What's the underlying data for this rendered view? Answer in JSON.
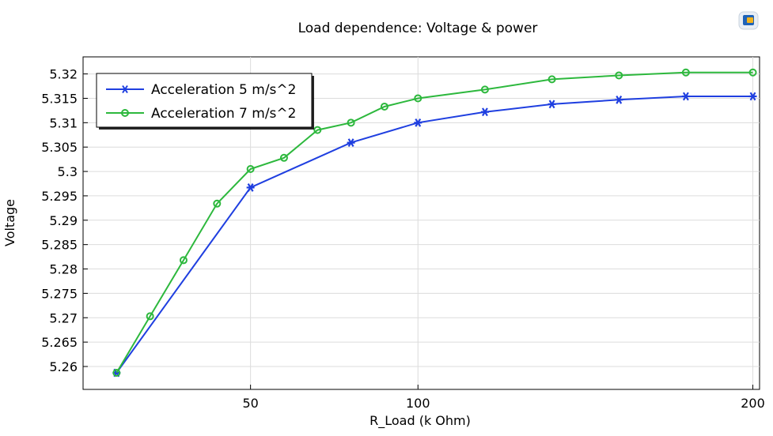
{
  "chart_data": {
    "type": "line",
    "title": "Load dependence: Voltage & power",
    "xlabel": "R_Load (k Ohm)",
    "ylabel": "Voltage",
    "x_ticks": [
      "50",
      "100",
      "200"
    ],
    "y_ticks": [
      "5.26",
      "5.265",
      "5.27",
      "5.275",
      "5.28",
      "5.285",
      "5.29",
      "5.295",
      "5.3",
      "5.305",
      "5.31",
      "5.315",
      "5.32"
    ],
    "ylim": [
      5.2553,
      5.3235
    ],
    "grid": true,
    "legend_position": "top-left",
    "series": [
      {
        "name": "Acceleration 5 m/s^2",
        "color": "#1f3fe0",
        "marker": "asterisk",
        "x": [
          10,
          50,
          80,
          100,
          120,
          140,
          160,
          180,
          200
        ],
        "y": [
          5.2587,
          5.2967,
          5.3059,
          5.31,
          5.3122,
          5.3138,
          5.3147,
          5.3154,
          5.3154
        ]
      },
      {
        "name": "Acceleration 7 m/s^2",
        "color": "#2db83d",
        "marker": "circle",
        "x": [
          10,
          20,
          30,
          40,
          50,
          60,
          70,
          80,
          90,
          100,
          120,
          140,
          160,
          180,
          200
        ],
        "y": [
          5.2587,
          5.2703,
          5.2818,
          5.2934,
          5.3005,
          5.3028,
          5.3085,
          5.31,
          5.3133,
          5.315,
          5.3168,
          5.3189,
          5.3197,
          5.3203,
          5.3203
        ]
      }
    ]
  }
}
